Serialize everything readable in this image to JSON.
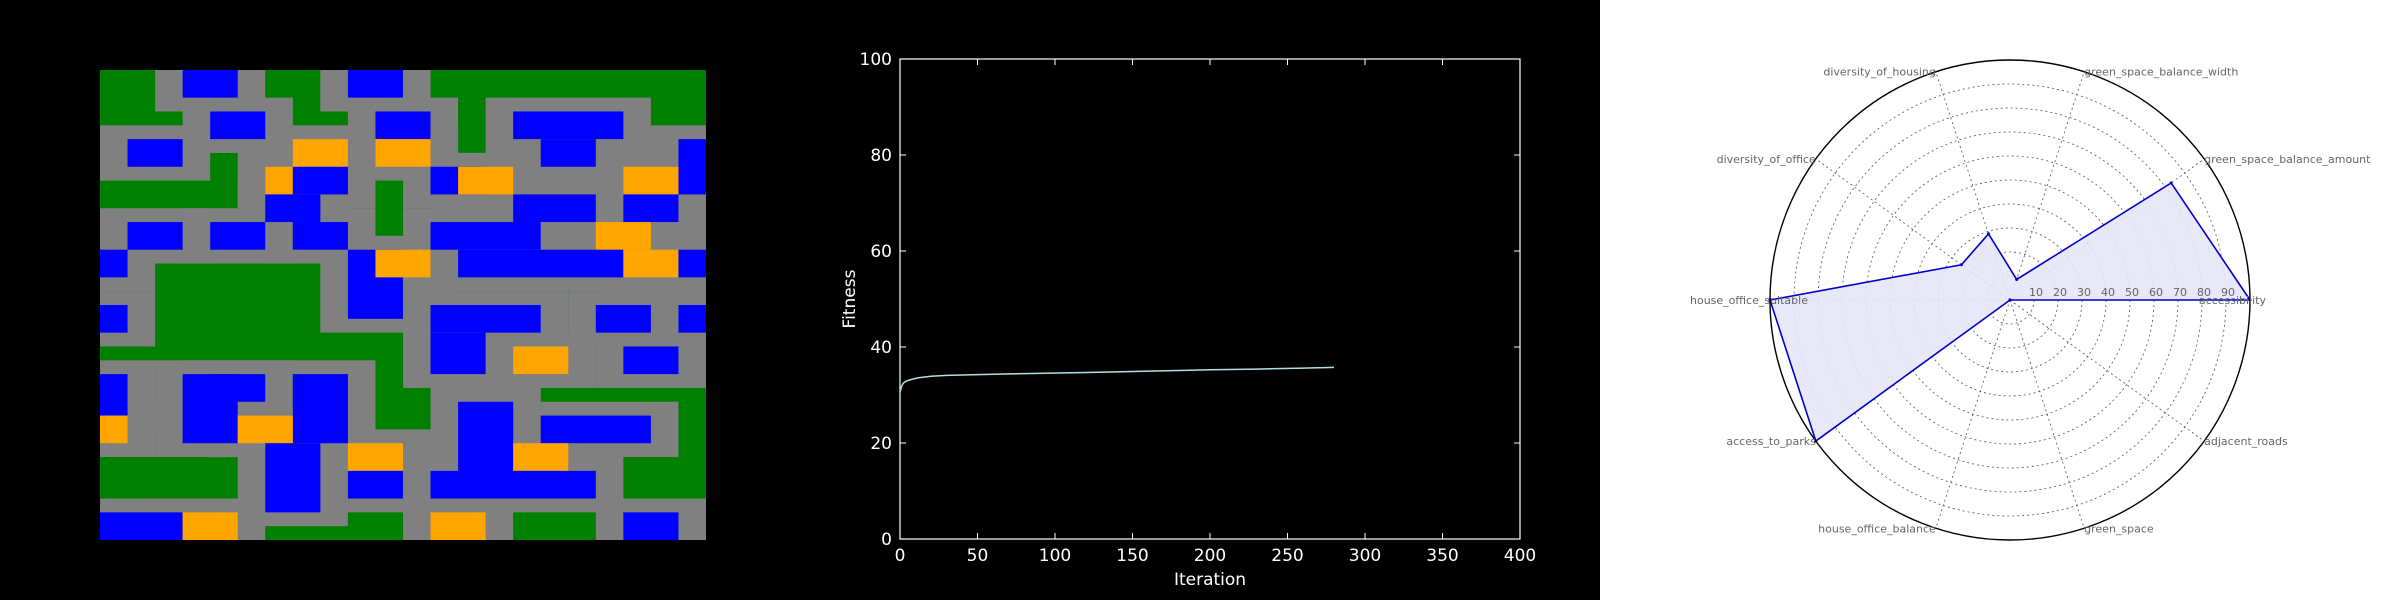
{
  "chart_data": [
    {
      "type": "heatmap",
      "title": "",
      "legend": {
        "cell_colors": [
          "#008000",
          "#808080",
          "#0000ff",
          "#ffa500"
        ]
      },
      "rows": [
        "GGGBBGGGGGBBGGGGGGGGGG",
        "GGGBBGGGGGBBGGGGGGGGGG",
        "GGGGGGGGGGGGGGGGGGGGGG",
        "GGGGBBGGGGGGBBGGGGBBBB",
        "GGGGBBGGGGGGBBGGGGGBBG",
        "GGGGGGGGGGGGGGGGGGGGGG",
        "GGBBGGGGGGOOGGGGGGGBBG",
        "GGBBGGGGGGOOGGGGGGGBBG",
        "GGGGGGGGGGGGGGGGGGGGBB",
        "GGGGGGGGGOOOGGBBGGGBBB",
        "GGGGGGGGGOOOGGBBGGGBBB",
        "GGGGGGGGGBBGGGGGGGGBBB",
        "GGGGGGGGGBBGGGGGGGGBBB",
        "GGGGGGGGGGGGGGGGGGGGGG",
        "GGBBGGGGGBBGGGGGGGGGGG",
        "GGBBGGGGGBBGGGGGGGGGGG",
        "GGGGGGGGGGGGGGGGGGGGGG",
        "GGGGGGGGGGGGGGGGGGGGGG",
        "BBGGGGGGGGGGGGBBBBBBBB",
        "BBGGGGGGGGGGGGBBBBBBBB",
        "GGGGGGGGGGGGGGGGGGGGGG",
        "GGGGGGGGGGGGGGGGGGGGGG",
        "BBGGGGGGGGGGGGGGGGGGGG",
        "BBGGGGGGGGGGGGGGGGGGGG",
        "GGGGGGGGGGGGGGGGGGGGGG",
        "GGGGGGGGGGGGGGGGGGGGGG",
        "GGGGGGGGGGGGGGGGGGGGGG",
        "GGGGGGGGGGGGGGGGGGGGGG",
        "GGGGGGGGGGGGGGGGGGGGGG",
        "GGGGGGGGGGGGGGGGGGGGGG",
        "GGGGGGGGGGGGGGGGGGGGGG",
        "GGGGGGGGGGGGGGGGGGGGGG",
        "GGGGGGGGGGGGGGGGGGGGGG",
        "GGGGGGGGGGGGGGGGGGGGGG"
      ],
      "features": [
        {
          "k": "B",
          "c0": 3,
          "r0": 0,
          "c1": 4,
          "r1": 1
        },
        {
          "k": "B",
          "c0": 9,
          "r0": 0,
          "c1": 10,
          "r1": 1
        },
        {
          "k": "B",
          "c0": 4,
          "r0": 3,
          "c1": 5,
          "r1": 4
        },
        {
          "k": "B",
          "c0": 10,
          "r0": 3,
          "c1": 11,
          "r1": 4
        },
        {
          "k": "B",
          "c0": 15,
          "r0": 3,
          "c1": 18,
          "r1": 4
        },
        {
          "k": "B",
          "c0": 16,
          "r0": 5,
          "c1": 17,
          "r1": 6
        },
        {
          "k": "B",
          "c0": 1,
          "r0": 5,
          "c1": 2,
          "r1": 6
        },
        {
          "k": "O",
          "c0": 7,
          "r0": 5,
          "c1": 8,
          "r1": 6
        },
        {
          "k": "O",
          "c0": 10,
          "r0": 5,
          "c1": 11,
          "r1": 6
        },
        {
          "k": "B",
          "c0": 21,
          "r0": 5,
          "c1": 21,
          "r1": 8
        },
        {
          "k": "O",
          "c0": 6,
          "r0": 7,
          "c1": 7,
          "r1": 8
        },
        {
          "k": "B",
          "c0": 7,
          "r0": 7,
          "c1": 8,
          "r1": 8
        },
        {
          "k": "B",
          "c0": 12,
          "r0": 7,
          "c1": 13,
          "r1": 8
        },
        {
          "k": "O",
          "c0": 13,
          "r0": 7,
          "c1": 14,
          "r1": 8
        },
        {
          "k": "O",
          "c0": 19,
          "r0": 7,
          "c1": 20,
          "r1": 8
        },
        {
          "k": "B",
          "c0": 6,
          "r0": 9,
          "c1": 7,
          "r1": 10
        },
        {
          "k": "B",
          "c0": 15,
          "r0": 9,
          "c1": 17,
          "r1": 10
        },
        {
          "k": "B",
          "c0": 19,
          "r0": 9,
          "c1": 20,
          "r1": 10
        },
        {
          "k": "B",
          "c0": 1,
          "r0": 11,
          "c1": 2,
          "r1": 12
        },
        {
          "k": "B",
          "c0": 4,
          "r0": 11,
          "c1": 5,
          "r1": 12
        },
        {
          "k": "B",
          "c0": 7,
          "r0": 11,
          "c1": 8,
          "r1": 12
        },
        {
          "k": "B",
          "c0": 12,
          "r0": 11,
          "c1": 15,
          "r1": 12
        },
        {
          "k": "O",
          "c0": 18,
          "r0": 11,
          "c1": 19,
          "r1": 12
        },
        {
          "k": "B",
          "c0": 13,
          "r0": 13,
          "c1": 18,
          "r1": 14
        },
        {
          "k": "B",
          "c0": 9,
          "r0": 13,
          "c1": 10,
          "r1": 17
        },
        {
          "k": "O",
          "c0": 10,
          "r0": 13,
          "c1": 11,
          "r1": 14
        },
        {
          "k": "B",
          "c0": 0,
          "r0": 13,
          "c1": 0,
          "r1": 14
        },
        {
          "k": "O",
          "c0": 19,
          "r0": 13,
          "c1": 20,
          "r1": 14
        },
        {
          "k": "B",
          "c0": 21,
          "r0": 13,
          "c1": 21,
          "r1": 14
        },
        {
          "k": "B",
          "c0": 12,
          "r0": 17,
          "c1": 15,
          "r1": 18
        },
        {
          "k": "B",
          "c0": 12,
          "r0": 19,
          "c1": 13,
          "r1": 21
        },
        {
          "k": "O",
          "c0": 15,
          "r0": 20,
          "c1": 16,
          "r1": 21
        },
        {
          "k": "B",
          "c0": 0,
          "r0": 17,
          "c1": 0,
          "r1": 18
        },
        {
          "k": "B",
          "c0": 18,
          "r0": 17,
          "c1": 19,
          "r1": 18
        },
        {
          "k": "B",
          "c0": 21,
          "r0": 17,
          "c1": 21,
          "r1": 18
        },
        {
          "k": "B",
          "c0": 19,
          "r0": 20,
          "c1": 20,
          "r1": 21
        },
        {
          "k": "B",
          "c0": 0,
          "r0": 22,
          "c1": 0,
          "r1": 24
        },
        {
          "k": "B",
          "c0": 3,
          "r0": 22,
          "c1": 4,
          "r1": 26
        },
        {
          "k": "B",
          "c0": 4,
          "r0": 22,
          "c1": 5,
          "r1": 23
        },
        {
          "k": "B",
          "c0": 7,
          "r0": 22,
          "c1": 8,
          "r1": 26
        },
        {
          "k": "O",
          "c0": 0,
          "r0": 25,
          "c1": 0,
          "r1": 26
        },
        {
          "k": "O",
          "c0": 5,
          "r0": 25,
          "c1": 6,
          "r1": 26
        },
        {
          "k": "B",
          "c0": 13,
          "r0": 24,
          "c1": 14,
          "r1": 29
        },
        {
          "k": "B",
          "c0": 16,
          "r0": 25,
          "c1": 19,
          "r1": 26
        },
        {
          "k": "O",
          "c0": 9,
          "r0": 27,
          "c1": 10,
          "r1": 28
        },
        {
          "k": "O",
          "c0": 15,
          "r0": 27,
          "c1": 16,
          "r1": 28
        },
        {
          "k": "B",
          "c0": 6,
          "r0": 27,
          "c1": 7,
          "r1": 31
        },
        {
          "k": "B",
          "c0": 9,
          "r0": 29,
          "c1": 10,
          "r1": 30
        },
        {
          "k": "B",
          "c0": 12,
          "r0": 29,
          "c1": 17,
          "r1": 30
        },
        {
          "k": "B",
          "c0": 0,
          "r0": 32,
          "c1": 2,
          "r1": 33
        },
        {
          "k": "O",
          "c0": 3,
          "r0": 32,
          "c1": 4,
          "r1": 33
        },
        {
          "k": "O",
          "c0": 12,
          "r0": 32,
          "c1": 13,
          "r1": 33
        },
        {
          "k": "B",
          "c0": 19,
          "r0": 32,
          "c1": 20,
          "r1": 33
        }
      ]
    },
    {
      "type": "line",
      "title": "",
      "xlabel": "Iteration",
      "ylabel": "Fitness",
      "xlim": [
        0,
        400
      ],
      "ylim": [
        0,
        100
      ],
      "xticks": [
        0,
        50,
        100,
        150,
        200,
        250,
        300,
        350,
        400
      ],
      "yticks": [
        0,
        20,
        40,
        60,
        80,
        100
      ],
      "grid": false,
      "color": "#b0e0e0",
      "series": [
        {
          "x": [
            0,
            1,
            2,
            3,
            5,
            8,
            12,
            20,
            30,
            50,
            80,
            120,
            150,
            180,
            200,
            230,
            260,
            280
          ],
          "values": [
            30.5,
            31.8,
            32.4,
            32.7,
            33.0,
            33.3,
            33.6,
            33.9,
            34.1,
            34.25,
            34.45,
            34.7,
            34.9,
            35.1,
            35.25,
            35.4,
            35.6,
            35.75
          ]
        }
      ]
    },
    {
      "type": "radar",
      "title": "",
      "rlim": [
        0,
        100
      ],
      "rticks": [
        10,
        20,
        30,
        40,
        50,
        60,
        70,
        80,
        90
      ],
      "grid": true,
      "color": "#0000cc",
      "fill": "#e6e6f8",
      "axes": [
        {
          "label": "accessibility",
          "value": 100
        },
        {
          "label": "green_space_balance_amount",
          "value": 83
        },
        {
          "label": "green_space_balance_width",
          "value": 9
        },
        {
          "label": "diversity_of_housing",
          "value": 29
        },
        {
          "label": "diversity_of_office",
          "value": 25
        },
        {
          "label": "house_office_suitable",
          "value": 100
        },
        {
          "label": "access_to_parks",
          "value": 100
        },
        {
          "label": "house_office_balance",
          "value": 0
        },
        {
          "label": "green_space",
          "value": 0
        },
        {
          "label": "adjacent_roads",
          "value": 0
        }
      ]
    }
  ]
}
